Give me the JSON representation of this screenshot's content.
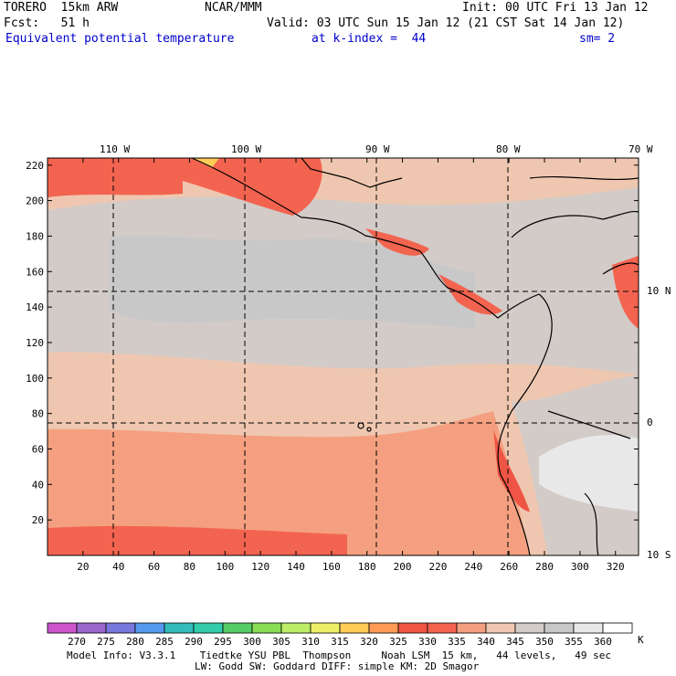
{
  "header": {
    "model": "TORERO  15km ARW",
    "org": "NCAR/MMM",
    "init": "Init: 00 UTC Fri 13 Jan 12",
    "fcst": "Fcst:   51 h",
    "valid": "Valid: 03 UTC Sun 15 Jan 12 (21 CST Sat 14 Jan 12)",
    "field": "Equivalent potential temperature",
    "level": "at k-index =  44",
    "smooth": "sm= 2"
  },
  "map": {
    "lon_labels": [
      "110 W",
      "100 W",
      "90 W",
      "80 W",
      "70 W"
    ],
    "lat_labels": [
      "10 N",
      "0",
      "10 S"
    ],
    "y_ticks": [
      "220",
      "200",
      "180",
      "160",
      "140",
      "120",
      "100",
      "80",
      "60",
      "40",
      "20"
    ],
    "x_ticks": [
      "20",
      "40",
      "60",
      "80",
      "100",
      "120",
      "140",
      "160",
      "180",
      "200",
      "220",
      "240",
      "260",
      "280",
      "300",
      "320"
    ]
  },
  "colorbar": {
    "values": [
      "270",
      "275",
      "280",
      "285",
      "290",
      "295",
      "300",
      "305",
      "310",
      "315",
      "320",
      "325",
      "330",
      "335",
      "340",
      "345",
      "350",
      "355",
      "360"
    ],
    "unit": "K",
    "colors": [
      "#cc55cc",
      "#9966cc",
      "#7777dd",
      "#5599ee",
      "#33bbbb",
      "#33ccaa",
      "#55cc66",
      "#88dd55",
      "#bbee66",
      "#eeee66",
      "#ffcc55",
      "#ff9955",
      "#ee5544",
      "#f36450",
      "#f4a080",
      "#efc7b0",
      "#d2cbc8",
      "#c8c8c8",
      "#e8e8e8",
      "#ffffff"
    ]
  },
  "footer": {
    "line1": "Model Info: V3.3.1    Tiedtke YSU PBL  Thompson     Noah LSM  15 km,   44 levels,   49 sec",
    "line2": "LW: Godd SW: Goddard DIFF: simple KM: 2D Smagor"
  }
}
